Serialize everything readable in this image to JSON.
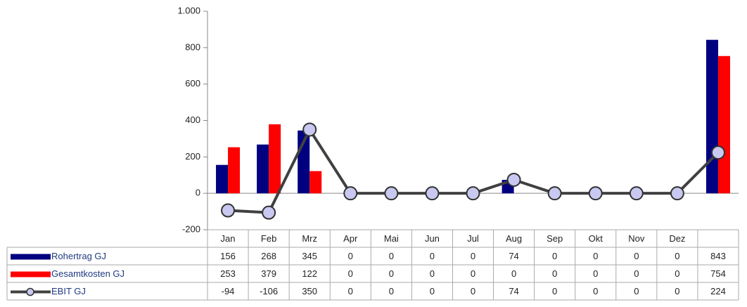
{
  "chart_data": {
    "type": "bar",
    "categories": [
      "Jan",
      "Feb",
      "Mrz",
      "Apr",
      "Mai",
      "Jun",
      "Jul",
      "Aug",
      "Sep",
      "Okt",
      "Nov",
      "Dez",
      null
    ],
    "series": [
      {
        "name": "Rohertrag GJ",
        "color": "#000080",
        "type": "bar",
        "values": [
          156,
          268,
          345,
          0,
          0,
          0,
          0,
          74,
          0,
          0,
          0,
          0,
          843
        ]
      },
      {
        "name": "Gesamtkosten GJ",
        "color": "#ff0000",
        "type": "bar",
        "values": [
          253,
          379,
          122,
          0,
          0,
          0,
          0,
          0,
          0,
          0,
          0,
          0,
          754
        ]
      },
      {
        "name": "EBIT GJ",
        "color": "#404040",
        "type": "line",
        "marker_color": "#c8c8f0",
        "values": [
          -94,
          -106,
          350,
          0,
          0,
          0,
          0,
          74,
          0,
          0,
          0,
          0,
          224
        ]
      }
    ],
    "ylim": [
      -200,
      1000
    ],
    "yticks": [
      -200,
      0,
      200,
      400,
      600,
      {
        "value": 800,
        "label": "800"
      },
      {
        "value": 1000,
        "label": "1.000"
      }
    ],
    "grid": false
  }
}
